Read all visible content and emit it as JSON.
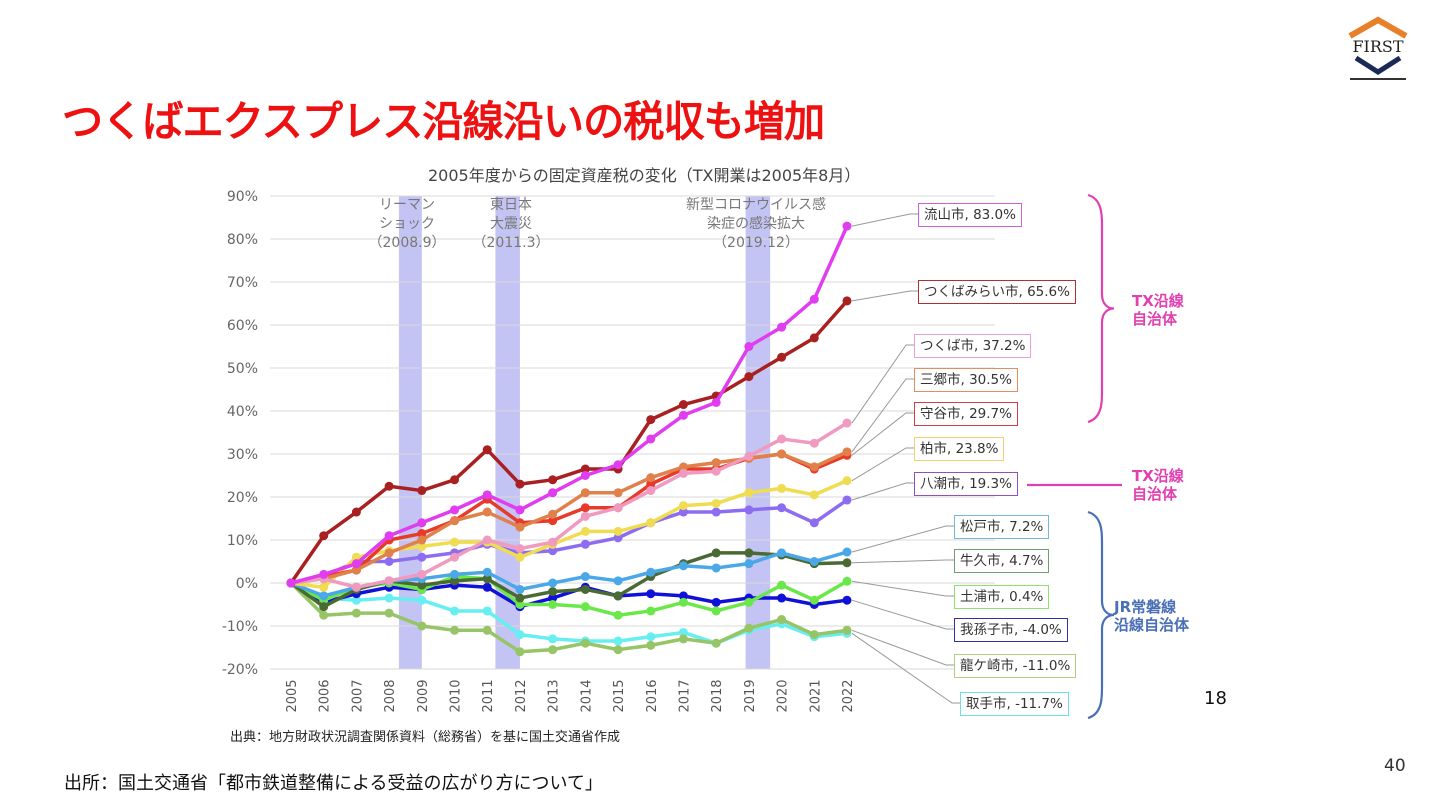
{
  "slide": {
    "title": "つくばエクスプレス沿線沿いの税収も増加",
    "source": "出所：国土交通省「都市鉄道整備による受益の広がり方について」",
    "page_number": "40",
    "inner_page_number": "18",
    "logo_text": "FIRST"
  },
  "groups": [
    {
      "label_line1": "TX沿線",
      "label_line2": "自治体",
      "color": "#e040b0"
    },
    {
      "label_line1": "TX沿線",
      "label_line2": "自治体",
      "color": "#e040b0"
    },
    {
      "label_line1": "JR常磐線",
      "label_line2": "沿線自治体",
      "color": "#4a6fb5"
    }
  ],
  "events": [
    {
      "line1": "リーマン",
      "line2": "ショック",
      "line3": "（2008.9）"
    },
    {
      "line1": "東日本",
      "line2": "大震災",
      "line3": "（2011.3）"
    },
    {
      "line1": "新型コロナウイルス感",
      "line2": "染症の感染拡大",
      "line3": "（2019.12）"
    }
  ],
  "chart_data": {
    "type": "line",
    "title": "2005年度からの固定資産税の変化（TX開業は2005年8月）",
    "xlabel": "",
    "ylabel": "",
    "source_note": "出典：地方財政状況調査関係資料（総務省）を基に国土交通省作成",
    "x": [
      "2005",
      "2006",
      "2007",
      "2008",
      "2009",
      "2010",
      "2011",
      "2012",
      "2013",
      "2014",
      "2015",
      "2016",
      "2017",
      "2018",
      "2019",
      "2020",
      "2021",
      "2022"
    ],
    "ylim": [
      -20,
      90
    ],
    "yticks": [
      -20,
      -10,
      0,
      10,
      20,
      30,
      40,
      50,
      60,
      70,
      80,
      90
    ],
    "ytick_labels": [
      "-20%",
      "-10%",
      "0%",
      "10%",
      "20%",
      "30%",
      "40%",
      "50%",
      "60%",
      "70%",
      "80%",
      "90%"
    ],
    "grid": true,
    "shaded_periods": [
      {
        "label": "リーマンショック (2008.9)",
        "from": 2008.3,
        "to": 2009.0
      },
      {
        "label": "東日本大震災 (2011.3)",
        "from": 2011.25,
        "to": 2012.0
      },
      {
        "label": "新型コロナウイルス感染症の感染拡大 (2019.12)",
        "from": 2018.9,
        "to": 2019.65
      }
    ],
    "series": [
      {
        "name": "流山市",
        "label": "流山市, 83.0%",
        "color": "#e03cf0",
        "border": "#d060d8",
        "values": [
          0,
          2,
          4.5,
          11,
          14,
          17,
          20.5,
          17,
          21,
          25,
          27.5,
          33.5,
          39,
          42,
          55,
          59.5,
          66,
          83.0
        ]
      },
      {
        "name": "つくばみらい市",
        "label": "つくばみらい市, 65.6%",
        "color": "#a82020",
        "border": "#b03030",
        "values": [
          0,
          11,
          16.5,
          22.5,
          21.5,
          24,
          31,
          23,
          24,
          26.5,
          26.5,
          38,
          41.5,
          43.5,
          48,
          52.5,
          57,
          65.6
        ]
      },
      {
        "name": "つくば市",
        "label": "つくば市, 37.2%",
        "color": "#f09ac0",
        "border": "#e8a0d8",
        "values": [
          0,
          1,
          -1,
          0.5,
          2,
          6,
          10,
          8,
          9.5,
          15.5,
          17.5,
          21.5,
          25.5,
          26,
          29.5,
          33.5,
          32.5,
          37.2
        ]
      },
      {
        "name": "三郷市",
        "label": "三郷市, 30.5%",
        "color": "#e0804a",
        "border": "#e09060",
        "values": [
          0,
          1,
          3,
          7,
          10,
          14.5,
          16.5,
          13,
          16,
          21,
          21,
          24.5,
          27,
          28,
          29,
          30,
          27,
          30.5
        ]
      },
      {
        "name": "守谷市",
        "label": "守谷市, 29.7%",
        "color": "#e83a28",
        "border": "#d04040",
        "values": [
          0,
          1.5,
          3,
          10,
          11.5,
          14.5,
          19.5,
          14,
          14.5,
          17.5,
          17.5,
          23,
          26.5,
          26.5,
          29,
          30,
          26.5,
          29.7
        ]
      },
      {
        "name": "柏市",
        "label": "柏市, 23.8%",
        "color": "#f0dc50",
        "border": "#f0d070",
        "values": [
          0,
          -1,
          6,
          7.5,
          8.5,
          9.5,
          9.5,
          6,
          9,
          12,
          12,
          14,
          18,
          18.5,
          21,
          22,
          20.5,
          23.8
        ]
      },
      {
        "name": "八潮市",
        "label": "八潮市, 19.3%",
        "color": "#8c6cf0",
        "border": "#9050c0",
        "values": [
          0,
          1.5,
          5,
          5,
          6,
          7,
          9,
          7,
          7.5,
          9,
          10.5,
          14,
          16.5,
          16.5,
          17,
          17.5,
          14,
          19.3
        ]
      },
      {
        "name": "松戸市",
        "label": "松戸市, 7.2%",
        "color": "#4aa8e8",
        "border": "#70b8e0",
        "values": [
          0,
          -3,
          -1,
          0.5,
          1,
          2,
          2.5,
          -1.5,
          0,
          1.5,
          0.5,
          2.5,
          4,
          3.5,
          4.5,
          7,
          5,
          7.2
        ]
      },
      {
        "name": "牛久市",
        "label": "牛久市, 4.7%",
        "color": "#4a6a34",
        "border": "#70a070",
        "values": [
          0,
          -5.5,
          -1.5,
          0.5,
          -0.5,
          0.5,
          1,
          -3.5,
          -2,
          -1.5,
          -3,
          1.5,
          4.5,
          7,
          7,
          6.5,
          4.5,
          4.7
        ]
      },
      {
        "name": "土浦市",
        "label": "土浦市, 0.4%",
        "color": "#6ae84a",
        "border": "#90e070",
        "values": [
          0,
          -4,
          -1,
          0,
          -1.5,
          1.5,
          1,
          -5,
          -5,
          -5.5,
          -7.5,
          -6.5,
          -4.5,
          -6.5,
          -4.5,
          -0.5,
          -4,
          0.4
        ]
      },
      {
        "name": "我孫子市",
        "label": "我孫子市, -4.0%",
        "color": "#1010d8",
        "border": "#3030a0",
        "values": [
          0,
          -4.5,
          -2.5,
          -1,
          -1.5,
          -0.5,
          -1,
          -5.5,
          -3.5,
          -1,
          -3,
          -2.5,
          -3,
          -4.5,
          -3.5,
          -3.5,
          -5,
          -4.0
        ]
      },
      {
        "name": "龍ケ崎市",
        "label": "龍ケ崎市, -11.0%",
        "color": "#96c466",
        "border": "#b0d080",
        "values": [
          0,
          -7.5,
          -7,
          -7,
          -10,
          -11,
          -11,
          -16,
          -15.5,
          -14,
          -15.5,
          -14.5,
          -13,
          -14,
          -10.5,
          -8.5,
          -12,
          -11.0
        ]
      },
      {
        "name": "取手市",
        "label": "取手市, -11.7%",
        "color": "#66eef0",
        "border": "#70e0e8",
        "values": [
          0,
          -3.5,
          -4,
          -3.5,
          -4,
          -6.5,
          -6.5,
          -12,
          -13,
          -13.5,
          -13.5,
          -12.5,
          -11.5,
          -14,
          -11,
          -9.5,
          -12.5,
          -11.7
        ]
      }
    ]
  }
}
